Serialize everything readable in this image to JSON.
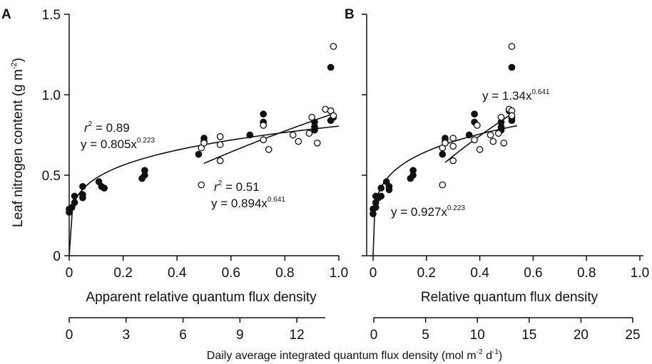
{
  "figure": {
    "y_axis_label": "Leaf nitrogen content (g m",
    "y_axis_label_sup": "-2",
    "y_axis_label_tail": ")",
    "bottom_axis_label": "Daily average integrated quantum flux density (mol m",
    "bottom_axis_label_sup1": "-2",
    "bottom_axis_label_mid": " d",
    "bottom_axis_label_sup2": "-1",
    "bottom_axis_label_tail": ")"
  },
  "chart_data": [
    {
      "panel": "A",
      "type": "scatter",
      "xlabel": "Apparent relative quantum flux density",
      "ylabel": "Leaf nitrogen content (g m-2)",
      "xlim": [
        0,
        1.0
      ],
      "ylim": [
        0,
        1.5
      ],
      "xticks": [
        "0",
        "0.2",
        "0.4",
        "0.6",
        "0.8",
        "1.0"
      ],
      "yticks": [
        "0",
        "0.5",
        "1.0",
        "1.5"
      ],
      "secondary_x": {
        "label": "Daily average integrated quantum flux density (mol m-2 d-1)",
        "lim": [
          0,
          13.5
        ],
        "ticks": [
          "0",
          "3",
          "6",
          "9",
          "12"
        ]
      },
      "series": [
        {
          "marker": "filled",
          "points": [
            [
              0.0,
              0.27
            ],
            [
              0.0,
              0.29
            ],
            [
              0.01,
              0.3
            ],
            [
              0.02,
              0.33
            ],
            [
              0.02,
              0.37
            ],
            [
              0.05,
              0.36
            ],
            [
              0.05,
              0.38
            ],
            [
              0.05,
              0.43
            ],
            [
              0.11,
              0.46
            ],
            [
              0.12,
              0.43
            ],
            [
              0.13,
              0.42
            ],
            [
              0.27,
              0.48
            ],
            [
              0.28,
              0.5
            ],
            [
              0.28,
              0.53
            ],
            [
              0.48,
              0.63
            ],
            [
              0.5,
              0.71
            ],
            [
              0.5,
              0.73
            ],
            [
              0.67,
              0.75
            ],
            [
              0.72,
              0.83
            ],
            [
              0.72,
              0.88
            ],
            [
              0.91,
              0.78
            ],
            [
              0.91,
              0.8
            ],
            [
              0.91,
              0.83
            ],
            [
              0.97,
              0.84
            ],
            [
              0.98,
              0.86
            ],
            [
              0.97,
              0.9
            ],
            [
              0.97,
              1.17
            ]
          ]
        },
        {
          "marker": "open",
          "points": [
            [
              0.49,
              0.44
            ],
            [
              0.49,
              0.67
            ],
            [
              0.5,
              0.7
            ],
            [
              0.56,
              0.59
            ],
            [
              0.56,
              0.69
            ],
            [
              0.56,
              0.74
            ],
            [
              0.72,
              0.72
            ],
            [
              0.72,
              0.81
            ],
            [
              0.74,
              0.66
            ],
            [
              0.83,
              0.75
            ],
            [
              0.85,
              0.71
            ],
            [
              0.89,
              0.76
            ],
            [
              0.9,
              0.86
            ],
            [
              0.92,
              0.7
            ],
            [
              0.95,
              0.91
            ],
            [
              0.97,
              0.9
            ],
            [
              0.98,
              0.87
            ],
            [
              0.98,
              1.3
            ]
          ]
        }
      ],
      "fits": [
        {
          "coef": 0.805,
          "exp": 0.223,
          "x_from": 0.0,
          "x_to": 1.0
        },
        {
          "coef": 0.894,
          "exp": 0.641,
          "x_from": 0.5,
          "x_to": 0.98
        }
      ],
      "annotations": [
        {
          "r_label": "r",
          "r_sup": "2",
          "r_value": " = 0.89",
          "eq_prefix": "y = 0.805x",
          "eq_sup": "0.223"
        },
        {
          "r_label": "r",
          "r_sup": "2",
          "r_value": " = 0.51",
          "eq_prefix": "y = 0.894x",
          "eq_sup": "0.641"
        }
      ]
    },
    {
      "panel": "B",
      "type": "scatter",
      "xlabel": "Relative quantum flux density",
      "ylabel": "",
      "xlim": [
        0,
        1.0
      ],
      "ylim": [
        0,
        1.5
      ],
      "xticks": [
        "0",
        "0.2",
        "0.4",
        "0.6",
        "0.8",
        "1.0"
      ],
      "yticks": [
        "0",
        "0.5",
        "1.0",
        "1.5"
      ],
      "secondary_x": {
        "label": "Daily average integrated quantum flux density (mol m-2 d-1)",
        "lim": [
          0,
          25
        ],
        "ticks": [
          "0",
          "5",
          "10",
          "15",
          "20",
          "25"
        ]
      },
      "series": [
        {
          "marker": "filled",
          "points": [
            [
              0.0,
              0.26
            ],
            [
              0.0,
              0.29
            ],
            [
              0.01,
              0.3
            ],
            [
              0.01,
              0.33
            ],
            [
              0.01,
              0.37
            ],
            [
              0.02,
              0.36
            ],
            [
              0.03,
              0.37
            ],
            [
              0.03,
              0.42
            ],
            [
              0.05,
              0.46
            ],
            [
              0.06,
              0.43
            ],
            [
              0.06,
              0.41
            ],
            [
              0.14,
              0.48
            ],
            [
              0.15,
              0.5
            ],
            [
              0.15,
              0.53
            ],
            [
              0.26,
              0.63
            ],
            [
              0.27,
              0.71
            ],
            [
              0.27,
              0.73
            ],
            [
              0.36,
              0.75
            ],
            [
              0.38,
              0.83
            ],
            [
              0.38,
              0.88
            ],
            [
              0.48,
              0.78
            ],
            [
              0.48,
              0.8
            ],
            [
              0.48,
              0.83
            ],
            [
              0.52,
              0.84
            ],
            [
              0.52,
              0.86
            ],
            [
              0.51,
              0.9
            ],
            [
              0.52,
              1.17
            ]
          ]
        },
        {
          "marker": "open",
          "points": [
            [
              0.26,
              0.44
            ],
            [
              0.26,
              0.67
            ],
            [
              0.27,
              0.7
            ],
            [
              0.3,
              0.59
            ],
            [
              0.3,
              0.68
            ],
            [
              0.3,
              0.73
            ],
            [
              0.38,
              0.72
            ],
            [
              0.39,
              0.81
            ],
            [
              0.4,
              0.66
            ],
            [
              0.44,
              0.75
            ],
            [
              0.45,
              0.71
            ],
            [
              0.47,
              0.76
            ],
            [
              0.48,
              0.86
            ],
            [
              0.49,
              0.7
            ],
            [
              0.51,
              0.91
            ],
            [
              0.52,
              0.9
            ],
            [
              0.52,
              0.87
            ],
            [
              0.52,
              1.3
            ]
          ]
        }
      ],
      "fits": [
        {
          "coef": 0.927,
          "exp": 0.223,
          "x_from": 0.0,
          "x_to": 0.54
        },
        {
          "coef": 1.34,
          "exp": 0.641,
          "x_from": 0.27,
          "x_to": 0.52
        }
      ],
      "annotations": [
        {
          "eq_prefix": "y = 0.927x",
          "eq_sup": "0.223"
        },
        {
          "eq_prefix": "y = 1.34x",
          "eq_sup": "0.641"
        }
      ]
    }
  ]
}
